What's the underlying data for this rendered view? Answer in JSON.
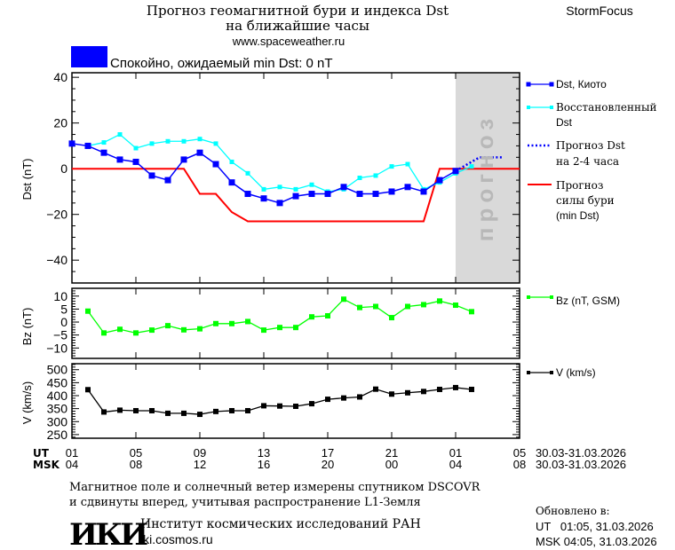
{
  "header": {
    "title_line1": "Прогноз геомагнитной бури и индекса Dst",
    "title_line2": "на ближайшие часы",
    "site": "www.spaceweather.ru",
    "brand": "StormFocus",
    "status_text": "Спокойно, ожидаемый min Dst: 0 nT",
    "status_color": "#0000ff"
  },
  "forecast_zone_label": "прогноз",
  "colors": {
    "dst": "#0000ff",
    "dst_restored": "#00ffff",
    "forecast": "#0000ff",
    "min_dst": "#ff0000",
    "bz": "#00ff00",
    "v": "#000000",
    "forecast_zone": "#d9d9d9"
  },
  "chart_data": [
    {
      "type": "line",
      "ylabel": "Dst (nT)",
      "ylim": [
        -50,
        42
      ],
      "yticks": [
        40,
        20,
        0,
        -20,
        -40
      ],
      "times": [
        "30.03 01:00",
        "30.03 02:00",
        "30.03 03:00",
        "30.03 04:00",
        "30.03 05:00",
        "30.03 06:00",
        "30.03 07:00",
        "30.03 08:00",
        "30.03 09:00",
        "30.03 10:00",
        "30.03 11:00",
        "30.03 12:00",
        "30.03 13:00",
        "30.03 14:00",
        "30.03 15:00",
        "30.03 16:00",
        "30.03 17:00",
        "30.03 18:00",
        "30.03 19:00",
        "30.03 20:00",
        "30.03 21:00",
        "30.03 22:00",
        "30.03 23:00",
        "31.03 00:00",
        "31.03 01:00",
        "31.03 02:00"
      ],
      "forecast_zone": [
        "31.03 01:00",
        "31.03 05:00"
      ],
      "series": [
        {
          "name": "Dst, Киото",
          "key": "dst",
          "marker": "square-large",
          "values": [
            11,
            10,
            7,
            4,
            3,
            -3,
            -5,
            4,
            7,
            2,
            -6,
            -11,
            -13,
            -15,
            -12,
            -11,
            -11,
            -8,
            -11,
            -11,
            -10,
            -8,
            -10,
            -5,
            -1,
            null
          ]
        },
        {
          "name": "Восстановленный Dst",
          "key": "dst_restored",
          "marker": "square-small",
          "values": [
            null,
            10,
            11.5,
            15,
            9,
            11,
            12,
            12,
            13,
            11,
            3,
            -2,
            -9,
            -8,
            -9,
            -7,
            -10,
            -9,
            -4,
            -3,
            1,
            2,
            -9,
            -6,
            -2,
            1
          ]
        },
        {
          "name": "Прогноз Dst на 2-4 часа",
          "key": "forecast",
          "style": "dotted",
          "points": [
            [
              "31.03 01:00",
              -1
            ],
            [
              "31.03 02:00",
              3
            ],
            [
              "31.03 02:30",
              5
            ],
            [
              "31.03 04:00",
              5
            ]
          ]
        },
        {
          "name": "Прогноз силы бури (min Dst)",
          "key": "min_dst",
          "style": "line",
          "points": [
            [
              "30.03 01:00",
              0
            ],
            [
              "30.03 08:00",
              0
            ],
            [
              "30.03 09:00",
              -11
            ],
            [
              "30.03 10:00",
              -11
            ],
            [
              "30.03 11:00",
              -19
            ],
            [
              "30.03 12:00",
              -23
            ],
            [
              "30.03 23:00",
              -23
            ],
            [
              "31.03 00:00",
              0
            ],
            [
              "31.03 05:00",
              0
            ]
          ]
        }
      ]
    },
    {
      "type": "line",
      "ylabel": "Bz (nT)",
      "ylim": [
        -14,
        13
      ],
      "yticks": [
        10,
        5,
        0,
        -5,
        -10
      ],
      "series": [
        {
          "name": "Bz (nT, GSM)",
          "key": "bz",
          "values": [
            null,
            4.2,
            -4.2,
            -2.8,
            -4.2,
            -3.1,
            -1.4,
            -3.0,
            -2.6,
            -0.6,
            -0.6,
            0.2,
            -3.1,
            -2.1,
            -2.1,
            2.0,
            2.4,
            8.8,
            5.6,
            6.0,
            1.7,
            6.0,
            6.7,
            8.1,
            6.5,
            4.0
          ]
        }
      ]
    },
    {
      "type": "line",
      "ylabel": "V (km/s)",
      "ylim": [
        236,
        523
      ],
      "yticks": [
        500,
        450,
        400,
        350,
        300,
        250
      ],
      "series": [
        {
          "name": "V (km/s)",
          "key": "v",
          "values": [
            null,
            423,
            337,
            344,
            342,
            342,
            332,
            332,
            328,
            339,
            342,
            342,
            361,
            360,
            359,
            369,
            386,
            391,
            395,
            425,
            406,
            411,
            416,
            424,
            431,
            424
          ]
        }
      ]
    }
  ],
  "xaxis": {
    "ut_label": "UT",
    "msk_label": "MSK",
    "ut_ticks": [
      "01",
      "05",
      "09",
      "13",
      "17",
      "21",
      "01",
      "05"
    ],
    "msk_ticks": [
      "04",
      "08",
      "12",
      "16",
      "20",
      "00",
      "04",
      "08"
    ],
    "ut_range": "30.03-31.03.2026",
    "msk_range": "30.03-31.03.2026"
  },
  "legend": {
    "dst": [
      "Dst, Киото"
    ],
    "dst_restored": [
      "Восстановленный",
      "Dst"
    ],
    "forecast": [
      "Прогноз Dst",
      "на 2-4 часа"
    ],
    "min_dst": [
      "Прогноз",
      "силы бури",
      "(min Dst)"
    ],
    "bz": [
      "Bz (nT, GSM)"
    ],
    "v": [
      "V (km/s)"
    ]
  },
  "footer": {
    "note_line1": "Магнитное поле и солнечный ветер измерены спутником DSCOVR",
    "note_line2": "и сдвинуты вперед, учитывая распространение L1-Земля",
    "institute": "Институт космических исследований РАН",
    "institute_url": "iki.cosmos.ru",
    "logo_text": "ИКИ",
    "updated_label": "Обновлено в:",
    "updated_ut": "UT   01:05, 31.03.2026",
    "updated_msk": "MSK 04:05, 31.03.2026"
  }
}
